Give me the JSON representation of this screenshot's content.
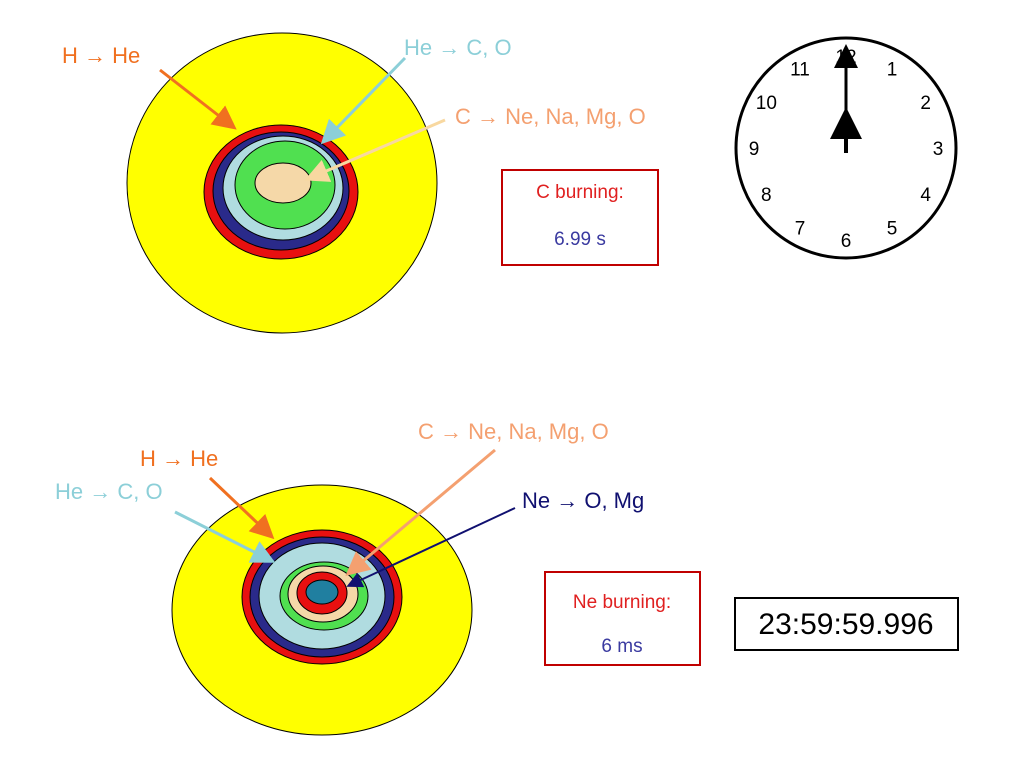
{
  "top": {
    "labels": {
      "h_he": "H → He",
      "he_co": "He → C, O",
      "c_ne": "C → Ne, Na, Mg, O"
    },
    "box": {
      "title": "C burning:",
      "time": "6.99 s"
    },
    "clock": {
      "numerals": [
        12,
        1,
        2,
        3,
        4,
        5,
        6,
        7,
        8,
        9,
        10,
        11
      ]
    }
  },
  "bottom": {
    "labels": {
      "c_ne": "C → Ne, Na, Mg, O",
      "h_he": "H → He",
      "he_co": "He → C, O",
      "ne_om": "Ne → O, Mg"
    },
    "box": {
      "title": "Ne burning:",
      "time": "6 ms"
    },
    "clock": "23:59:59.996"
  }
}
